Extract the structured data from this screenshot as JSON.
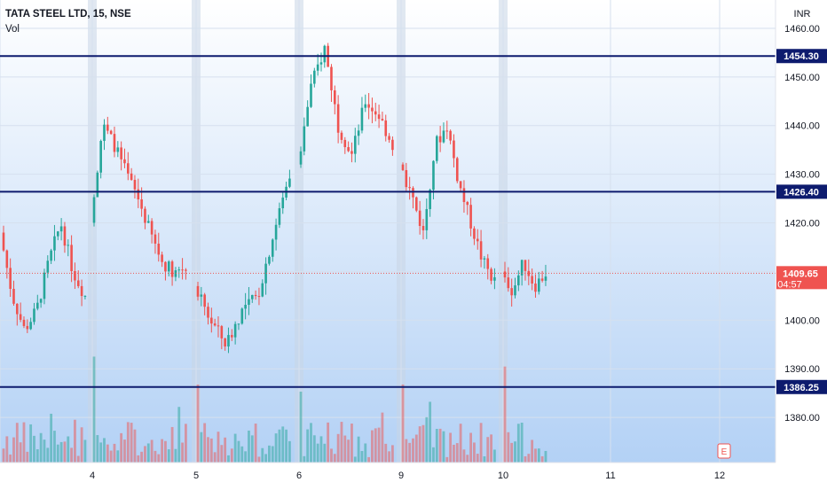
{
  "chart_data": {
    "type": "candlestick",
    "title": "TATA STEEL LTD, 15, NSE",
    "volume_label": "Vol",
    "currency_label": "INR",
    "ylim": [
      1372,
      1464
    ],
    "y_ticks": [
      1460,
      1450,
      1440,
      1430,
      1420,
      1410,
      1400,
      1390,
      1380
    ],
    "y_tick_labels": [
      "1460.00",
      "1450.00",
      "1440.00",
      "1430.00",
      "1420.00",
      "",
      "1400.00",
      "1390.00",
      "1380.00"
    ],
    "sessions": [
      {
        "label": "",
        "start": 1418,
        "end": 1405
      },
      {
        "label": "4",
        "start": 1420,
        "end": 1411
      },
      {
        "label": "5",
        "start": 1407,
        "end": 1430
      },
      {
        "label": "6",
        "start": 1432,
        "end": 1436
      },
      {
        "label": "9",
        "start": 1432,
        "end": 1408
      },
      {
        "label": "10",
        "start": 1410,
        "end": 1409.65
      }
    ],
    "future_labels": [
      "11",
      "12"
    ],
    "horizontal_levels": [
      {
        "value": 1454.3,
        "label": "1454.30"
      },
      {
        "value": 1426.4,
        "label": "1426.40"
      },
      {
        "value": 1386.25,
        "label": "1386.25"
      }
    ],
    "last_price": {
      "value": 1409.65,
      "label": "1409.65",
      "countdown": "04:57"
    },
    "colors": {
      "up": "#26a69a",
      "down": "#ef5350",
      "level_line": "#0d1b6e",
      "bg_top": "#ffffff",
      "bg_bottom": "#b3d1f5"
    },
    "footer_icon": "E"
  }
}
